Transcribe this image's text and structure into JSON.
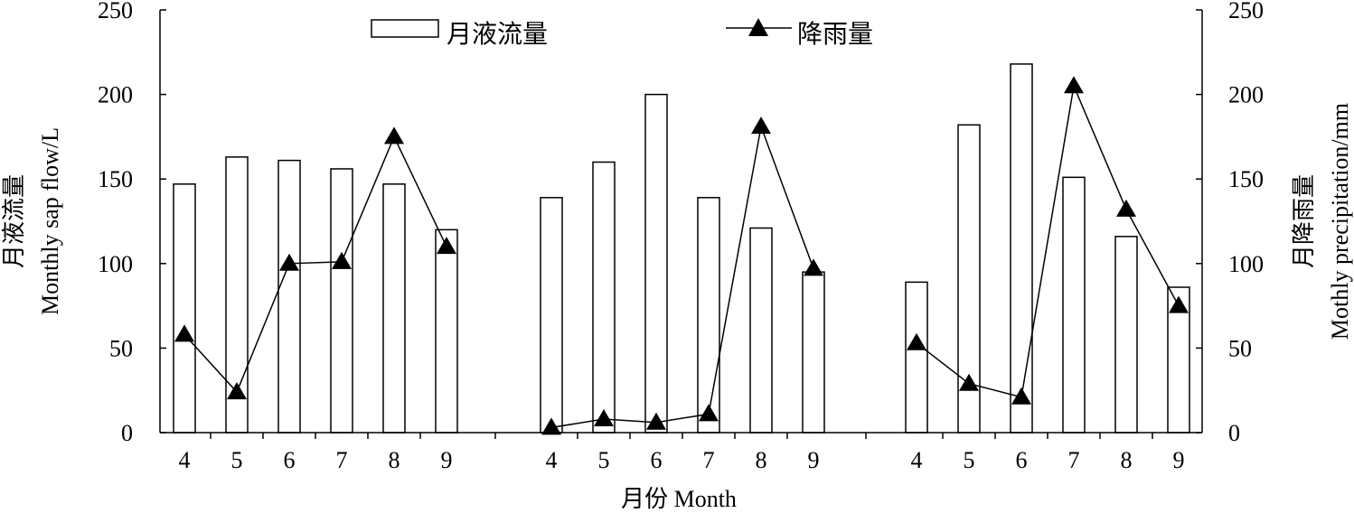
{
  "chart_data": {
    "type": "bar",
    "groups": [
      {
        "categories": [
          "4",
          "5",
          "6",
          "7",
          "8",
          "9"
        ]
      },
      {
        "categories": [
          "4",
          "5",
          "6",
          "7",
          "8",
          "9"
        ]
      },
      {
        "categories": [
          "4",
          "5",
          "6",
          "7",
          "8",
          "9"
        ]
      }
    ],
    "series": [
      {
        "name": "月液流量",
        "type": "bar",
        "axis": "left",
        "values": [
          [
            147,
            163,
            161,
            156,
            147,
            120
          ],
          [
            139,
            160,
            200,
            139,
            121,
            95
          ],
          [
            89,
            182,
            218,
            151,
            116,
            86
          ]
        ]
      },
      {
        "name": "降雨量",
        "type": "line",
        "marker": "triangle",
        "axis": "right",
        "values": [
          [
            58,
            24,
            100,
            101,
            175,
            110
          ],
          [
            3,
            8,
            6,
            11,
            181,
            97
          ],
          [
            53,
            29,
            21,
            205,
            132,
            75
          ]
        ]
      }
    ],
    "xlabel": "月份 Month",
    "ylabel_left": [
      "月液流量",
      "Monthly sap flow/L"
    ],
    "ylabel_right": [
      "月降雨量",
      "Mothly precipitation/mm"
    ],
    "ylim_left": [
      0,
      250
    ],
    "ylim_right": [
      0,
      250
    ],
    "yticks": [
      "0",
      "50",
      "100",
      "150",
      "200",
      "250"
    ],
    "grid": false,
    "legend_position": "top"
  }
}
